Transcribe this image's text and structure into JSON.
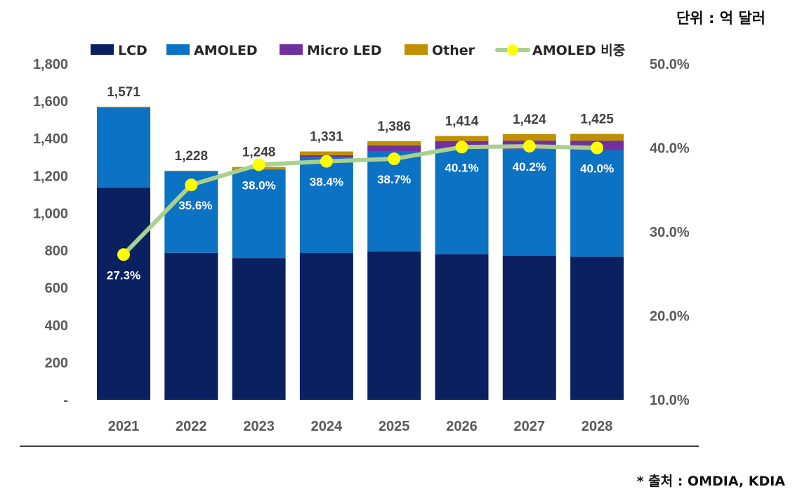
{
  "unit_label": "단위 : 억 달러",
  "source_label": "* 출처 : OMDIA, KDIA",
  "chart_data": {
    "type": "bar",
    "stacked": true,
    "categories": [
      "2021",
      "2022",
      "2023",
      "2024",
      "2025",
      "2026",
      "2027",
      "2028"
    ],
    "series": [
      {
        "name": "LCD",
        "color": "#0b2060",
        "values": [
          1138,
          788,
          760,
          787,
          795,
          780,
          772,
          767
        ]
      },
      {
        "name": "AMOLED",
        "color": "#0c72c3",
        "values": [
          429,
          437,
          474,
          511,
          536,
          567,
          572,
          570
        ]
      },
      {
        "name": "Micro LED",
        "color": "#7030a0",
        "values": [
          0,
          0,
          2,
          13,
          32,
          40,
          45,
          52
        ]
      },
      {
        "name": "Other",
        "color": "#bf9000",
        "values": [
          4,
          3,
          12,
          20,
          23,
          27,
          35,
          36
        ]
      }
    ],
    "totals": [
      1571,
      1228,
      1248,
      1331,
      1386,
      1414,
      1424,
      1425
    ],
    "total_labels": [
      "1,571",
      "1,228",
      "1,248",
      "1,331",
      "1,386",
      "1,414",
      "1,424",
      "1,425"
    ],
    "line_series": {
      "name": "AMOLED 비중",
      "axis": "right",
      "line_color": "#a9d18e",
      "marker_color": "#ffff00",
      "values": [
        27.3,
        35.6,
        38.0,
        38.4,
        38.7,
        40.1,
        40.2,
        40.0
      ],
      "labels": [
        "27.3%",
        "35.6%",
        "38.0%",
        "38.4%",
        "38.7%",
        "40.1%",
        "40.2%",
        "40.0%"
      ]
    },
    "y_left": {
      "ylim": [
        0,
        1800
      ],
      "ticks": [
        0,
        200,
        400,
        600,
        800,
        1000,
        1200,
        1400,
        1600,
        1800
      ],
      "tick_labels": [
        "-",
        "200",
        "400",
        "600",
        "800",
        "1,000",
        "1,200",
        "1,400",
        "1,600",
        "1,800"
      ]
    },
    "y_right": {
      "ylim": [
        10,
        50
      ],
      "ticks": [
        10,
        20,
        30,
        40,
        50
      ],
      "tick_labels": [
        "10.0%",
        "20.0%",
        "30.0%",
        "40.0%",
        "50.0%"
      ]
    },
    "legend": {
      "position": "top",
      "entries": [
        "LCD",
        "AMOLED",
        "Micro LED",
        "Other",
        "AMOLED 비중"
      ]
    },
    "grid": false
  }
}
